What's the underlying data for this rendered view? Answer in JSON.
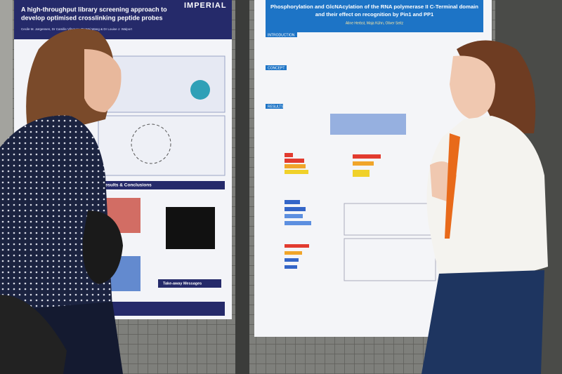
{
  "left_poster": {
    "brand": "IMPERIAL",
    "title": [
      "A high-throughput library screening approach to",
      "develop optimised crosslinking peptide probes"
    ],
    "authors": "Cecile M. Jørgensen, Dr Camille Vilaquay, Dr Wei Wang & Dr Louise J. Walport",
    "sections": [
      "Results & Conclusions",
      "Take-away Messages"
    ]
  },
  "right_poster": {
    "title": [
      "Phosphorylation and GlcNAcylation of the RNA polymerase II C-Terminal domain",
      "and their effect on recognition by Pin1 and PP1"
    ],
    "authors": "Aline Herbst, Maja Kühn, Oliver Seitz",
    "sections": [
      "INTRODUCTION",
      "CONCEPT",
      "RESULTS"
    ]
  }
}
